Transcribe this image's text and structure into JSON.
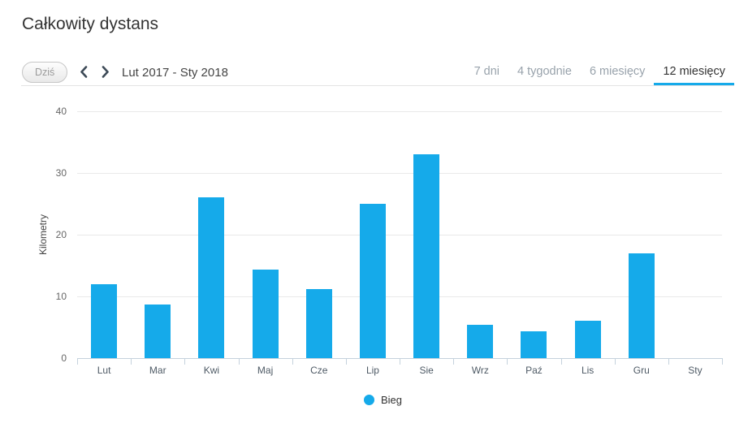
{
  "page": {
    "title": "Całkowity dystans"
  },
  "toolbar": {
    "today_label": "Dziś",
    "date_range": "Lut 2017 - Sty 2018",
    "tabs": [
      {
        "label": "7 dni",
        "active": false
      },
      {
        "label": "4 tygodnie",
        "active": false
      },
      {
        "label": "6 miesięcy",
        "active": false
      },
      {
        "label": "12 miesięcy",
        "active": true
      }
    ]
  },
  "chart_data": {
    "type": "bar",
    "title": "Całkowity dystans",
    "categories": [
      "Lut",
      "Mar",
      "Kwi",
      "Maj",
      "Cze",
      "Lip",
      "Sie",
      "Wrz",
      "Paź",
      "Lis",
      "Gru",
      "Sty"
    ],
    "values": [
      12,
      8.7,
      26,
      14.4,
      11.2,
      25,
      33,
      5.4,
      4.4,
      6,
      17,
      0
    ],
    "xlabel": "",
    "ylabel": "Kilometry",
    "ylim": [
      0,
      40
    ],
    "y_ticks": [
      0,
      10,
      20,
      30,
      40
    ],
    "grid": true,
    "bar_color": "#15aaea",
    "legend": [
      {
        "label": "Bieg",
        "color": "#15aaea"
      }
    ],
    "legend_position": "bottom"
  },
  "colors": {
    "accent_blue": "#15aaea",
    "axis_line": "#c5d2dd",
    "gridline": "#e9e9e9"
  }
}
